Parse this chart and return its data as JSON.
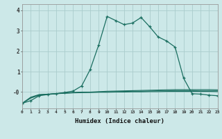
{
  "xlabel": "Humidex (Indice chaleur)",
  "bg_color": "#cce8e8",
  "grid_color": "#aacccc",
  "line_color": "#1a6e60",
  "x_min": 0,
  "x_max": 23,
  "y_min": -0.8,
  "y_max": 4.3,
  "main_x": [
    0,
    1,
    2,
    3,
    4,
    5,
    6,
    7,
    8,
    9,
    10,
    11,
    12,
    13,
    14,
    15,
    16,
    17,
    18,
    19,
    20,
    21,
    22,
    23
  ],
  "main_y": [
    -0.55,
    -0.42,
    -0.18,
    -0.12,
    -0.08,
    -0.02,
    0.05,
    0.3,
    1.1,
    2.3,
    3.7,
    3.5,
    3.3,
    3.38,
    3.65,
    3.2,
    2.7,
    2.5,
    2.2,
    0.68,
    -0.08,
    -0.1,
    -0.15,
    -0.18
  ],
  "flat1_x": [
    0,
    1,
    2,
    3,
    4,
    5,
    6,
    7,
    8,
    9,
    10,
    11,
    12,
    13,
    14,
    15,
    16,
    17,
    18,
    19,
    20,
    21,
    22,
    23
  ],
  "flat1_y": [
    -0.55,
    -0.25,
    -0.12,
    -0.1,
    -0.07,
    -0.04,
    -0.02,
    0.0,
    0.0,
    0.02,
    0.04,
    0.05,
    0.06,
    0.07,
    0.08,
    0.09,
    0.1,
    0.11,
    0.12,
    0.12,
    0.12,
    0.12,
    0.12,
    0.11
  ],
  "flat2_x": [
    0,
    1,
    2,
    3,
    4,
    5,
    6,
    7,
    8,
    9,
    10,
    11,
    12,
    13,
    14,
    15,
    16,
    17,
    18,
    19,
    20,
    21,
    22,
    23
  ],
  "flat2_y": [
    -0.55,
    -0.28,
    -0.14,
    -0.11,
    -0.08,
    -0.05,
    -0.03,
    -0.01,
    -0.01,
    0.0,
    0.01,
    0.02,
    0.03,
    0.04,
    0.04,
    0.05,
    0.06,
    0.06,
    0.07,
    0.07,
    0.07,
    0.06,
    0.06,
    0.06
  ],
  "flat3_x": [
    0,
    1,
    2,
    3,
    4,
    5,
    6,
    7,
    8,
    9,
    10,
    11,
    12,
    13,
    14,
    15,
    16,
    17,
    18,
    19,
    20,
    21,
    22,
    23
  ],
  "flat3_y": [
    -0.55,
    -0.3,
    -0.15,
    -0.11,
    -0.08,
    -0.06,
    -0.04,
    -0.03,
    -0.02,
    -0.01,
    -0.01,
    0.0,
    0.0,
    0.01,
    0.01,
    0.02,
    0.02,
    0.03,
    0.03,
    0.03,
    0.03,
    0.03,
    0.03,
    0.02
  ],
  "ylabel_ticks": [
    "-0",
    "1",
    "2",
    "3",
    "4"
  ],
  "ytick_vals": [
    0,
    1,
    2,
    3,
    4
  ]
}
